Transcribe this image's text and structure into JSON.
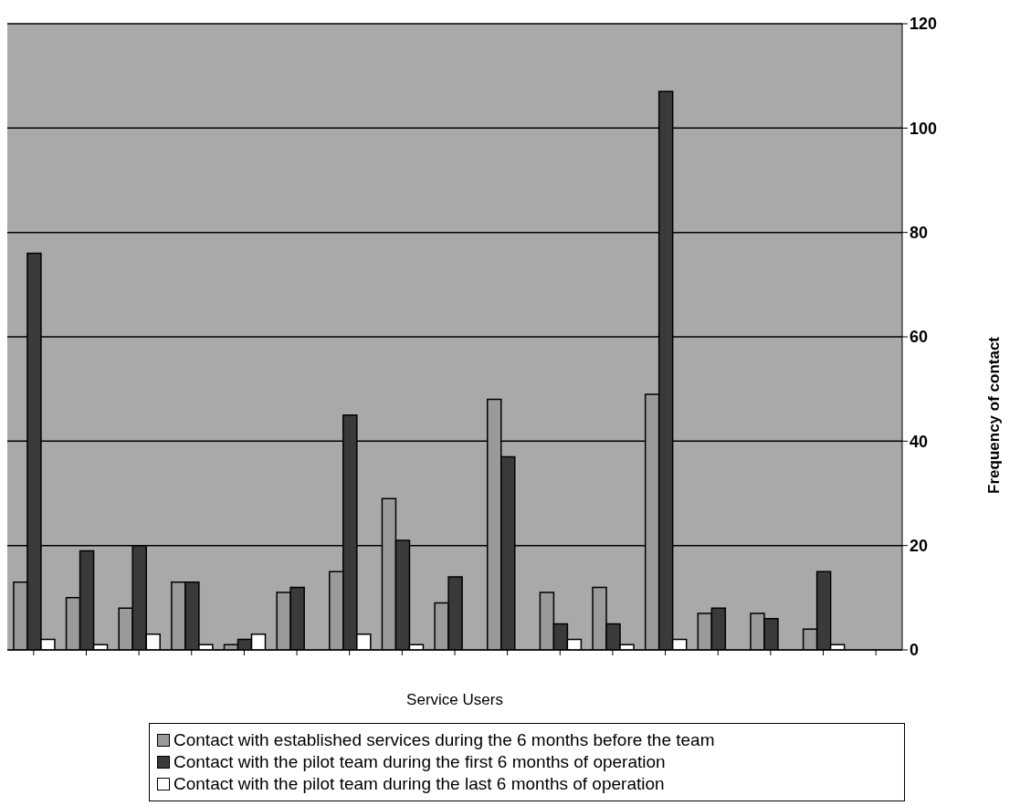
{
  "chart_data": {
    "type": "bar",
    "xlabel": "Service Users",
    "ylabel": "Frequency of contact",
    "categories": [
      null,
      null,
      null,
      null,
      null,
      null,
      null,
      null,
      null,
      null,
      null,
      null,
      null,
      null,
      null,
      null,
      null
    ],
    "series": [
      {
        "name": "Contact with established services during the 6 months before the team",
        "color": "#9a9a9a",
        "values": [
          13,
          10,
          8,
          13,
          1,
          11,
          15,
          29,
          9,
          48,
          11,
          12,
          49,
          7,
          7,
          4,
          0
        ]
      },
      {
        "name": "Contact with the pilot team during the first 6 months of operation",
        "color": "#3a3a3a",
        "values": [
          76,
          19,
          20,
          13,
          2,
          12,
          45,
          21,
          14,
          37,
          5,
          5,
          107,
          8,
          6,
          15,
          0
        ]
      },
      {
        "name": "Contact with the pilot team during the last 6 months of operation",
        "color": "#ffffff",
        "values": [
          2,
          1,
          3,
          1,
          3,
          0,
          3,
          1,
          0,
          0,
          2,
          1,
          2,
          0,
          0,
          1,
          0
        ]
      }
    ],
    "ylim": [
      0,
      120
    ],
    "yticks": [
      0,
      20,
      40,
      60,
      80,
      100,
      120
    ],
    "grid": "y",
    "legend": "bottom"
  }
}
